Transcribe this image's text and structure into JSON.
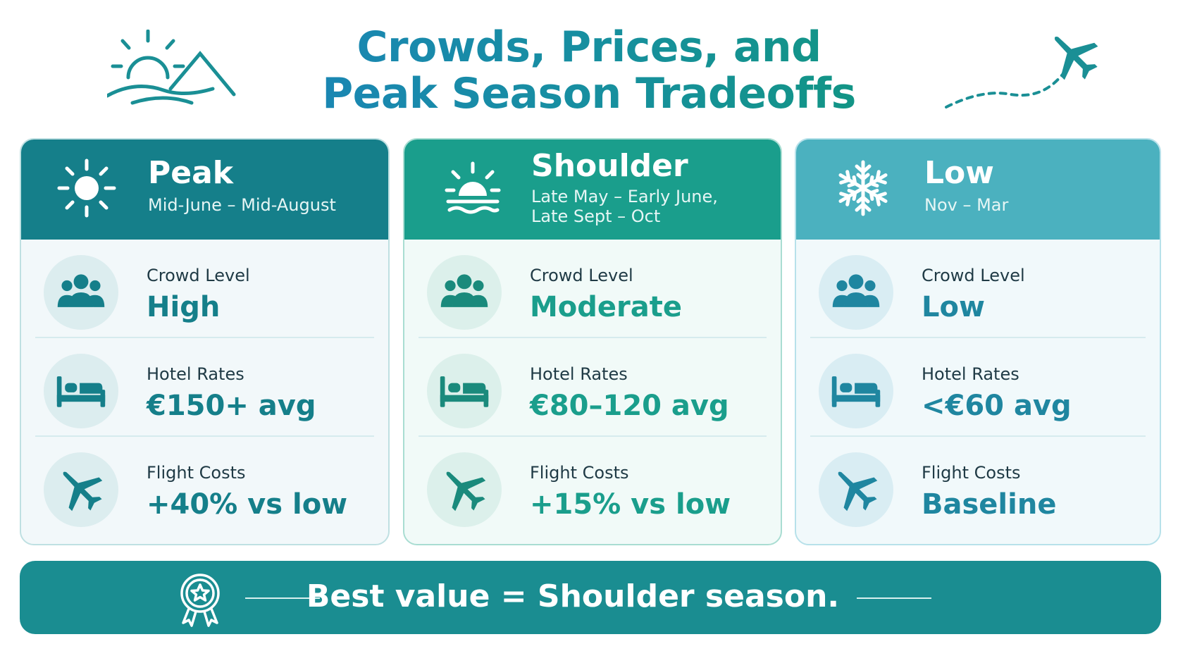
{
  "title": {
    "line1": "Crowds, Prices, and",
    "line2": "Peak Season Tradeoffs"
  },
  "decorations": {
    "left": "sun-mountain-icon",
    "right": "airplane-dashed-path-icon"
  },
  "colors": {
    "peak": "#157f8a",
    "shoulder": "#1a9e8c",
    "low": "#4bb1bf",
    "banner": "#1a8d91"
  },
  "seasons": [
    {
      "id": "peak",
      "icon": "sun-icon",
      "name": "Peak",
      "dates_line1": "Mid-June – Mid-August",
      "dates_line2": "",
      "rows": [
        {
          "icon": "crowd-icon",
          "label": "Crowd Level",
          "value": "High"
        },
        {
          "icon": "bed-icon",
          "label": "Hotel Rates",
          "value": "€150+ avg"
        },
        {
          "icon": "plane-icon",
          "label": "Flight Costs",
          "value": "+40% vs low"
        }
      ]
    },
    {
      "id": "shoulder",
      "icon": "sunset-icon",
      "name": "Shoulder",
      "dates_line1": "Late May – Early June,",
      "dates_line2": "Late Sept – Oct",
      "rows": [
        {
          "icon": "crowd-icon",
          "label": "Crowd Level",
          "value": "Moderate"
        },
        {
          "icon": "bed-icon",
          "label": "Hotel Rates",
          "value": "€80–120 avg"
        },
        {
          "icon": "plane-icon",
          "label": "Flight Costs",
          "value": "+15% vs low"
        }
      ]
    },
    {
      "id": "low",
      "icon": "snowflake-icon",
      "name": "Low",
      "dates_line1": "Nov – Mar",
      "dates_line2": "",
      "rows": [
        {
          "icon": "crowd-icon",
          "label": "Crowd Level",
          "value": "Low"
        },
        {
          "icon": "bed-icon",
          "label": "Hotel Rates",
          "value": "<€60 avg"
        },
        {
          "icon": "plane-icon",
          "label": "Flight Costs",
          "value": "Baseline"
        }
      ]
    }
  ],
  "banner": {
    "icon": "award-badge-icon",
    "text": "Best value = Shoulder season."
  }
}
